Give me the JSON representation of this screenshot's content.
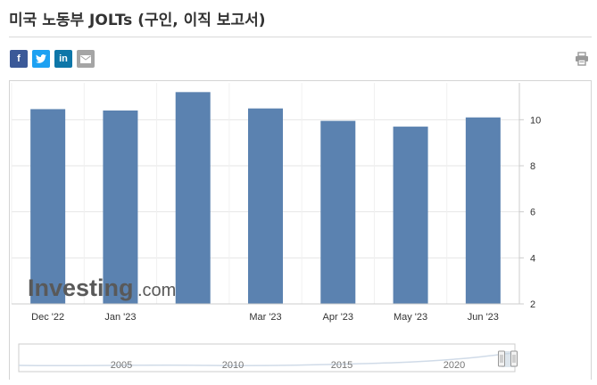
{
  "page": {
    "title": "미국 노동부 JOLTs (구인, 이직 보고서)"
  },
  "share": {
    "facebook": "f",
    "twitter": "twitter-icon",
    "linkedin": "in",
    "email": "email-icon",
    "print": "printer-icon",
    "colors": {
      "facebook": "#3b5998",
      "twitter": "#1da1f2",
      "linkedin": "#0e76a8",
      "email": "#a5a5a5"
    }
  },
  "watermark": {
    "brand": "Investing",
    "suffix": ".com"
  },
  "navigator": {
    "years": [
      "2005",
      "2010",
      "2015",
      "2020"
    ]
  },
  "chart_data": {
    "type": "bar",
    "categories": [
      "Dec '22",
      "Jan '23",
      "",
      "Mar '23",
      "Apr '23",
      "May '23",
      "Jun '23"
    ],
    "values": [
      10.46,
      10.4,
      11.2,
      10.49,
      9.95,
      9.7,
      10.1
    ],
    "ylim": [
      2,
      11.6
    ],
    "yticks": [
      2,
      4,
      6,
      8,
      10
    ],
    "grid": true,
    "bar_color": "#5b82b0",
    "y_axis_side": "right"
  }
}
